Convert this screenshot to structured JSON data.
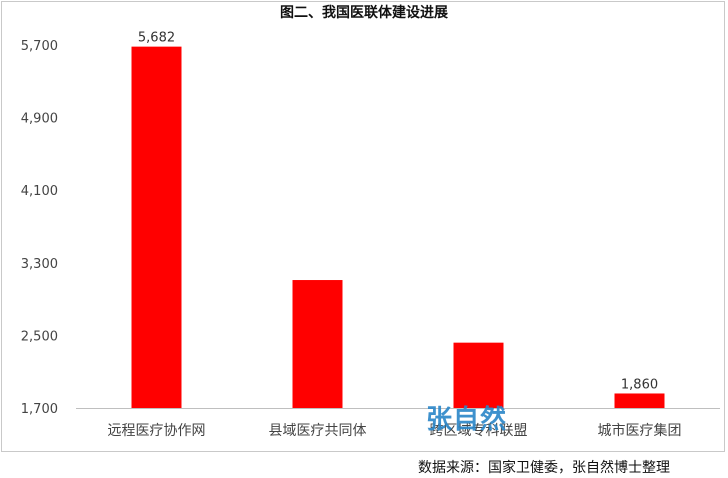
{
  "chart_data": {
    "type": "bar",
    "title": "图二、我国医联体建设进展",
    "categories": [
      "远程医疗协作网",
      "县域医疗共同体",
      "跨区域专科联盟",
      "城市医疗集团"
    ],
    "values": [
      5682,
      3110,
      2420,
      1860
    ],
    "data_labels": [
      "5,682",
      null,
      null,
      "1,860"
    ],
    "yticks": [
      "1,700",
      "2,500",
      "3,300",
      "4,100",
      "4,900",
      "5,700"
    ],
    "ylim": [
      1700,
      5700
    ],
    "bar_color": "#ff0000",
    "grid": false,
    "legend": "none"
  },
  "source_text": "数据来源：国家卫健委，张自然博士整理",
  "watermark_text": "张自然"
}
